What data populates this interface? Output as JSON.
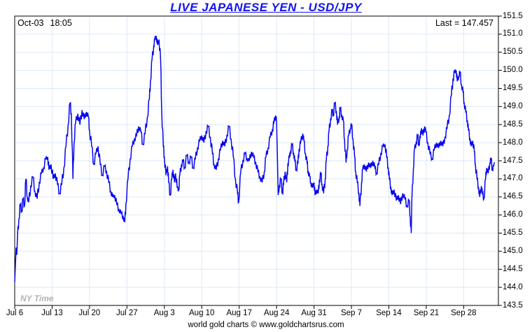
{
  "header": {
    "title": "LIVE JAPANESE YEN - USD/JPY",
    "date": "Oct-03",
    "time": "18:05",
    "last_label": "Last = 147.457"
  },
  "watermark": "NY Time",
  "footer": "world gold charts © www.goldchartsrus.com",
  "colors": {
    "line": "#0707ee",
    "title": "#1414f0",
    "grid": "#dce9f8",
    "axis": "#000000",
    "watermark": "#b3b3b3"
  },
  "chart_data": {
    "type": "line",
    "title": "LIVE JAPANESE YEN - USD/JPY",
    "series_name": "USD/JPY",
    "x_unit": "days since Jul 6",
    "xlim": [
      0,
      90.5
    ],
    "ylim": [
      143.5,
      151.5
    ],
    "y_tick_step": 0.5,
    "y_ticks": [
      151.5,
      151.0,
      150.5,
      150.0,
      149.5,
      149.0,
      148.5,
      148.0,
      147.5,
      147.0,
      146.5,
      146.0,
      145.5,
      145.0,
      144.5,
      144.0,
      143.5
    ],
    "x_ticks": [
      {
        "day": 0,
        "label": "Jul 6"
      },
      {
        "day": 7,
        "label": "Jul 13"
      },
      {
        "day": 14,
        "label": "Jul 20"
      },
      {
        "day": 21,
        "label": "Jul 27"
      },
      {
        "day": 28,
        "label": "Aug 3"
      },
      {
        "day": 35,
        "label": "Aug 10"
      },
      {
        "day": 42,
        "label": "Aug 17"
      },
      {
        "day": 49,
        "label": "Aug 24"
      },
      {
        "day": 56,
        "label": "Aug 31"
      },
      {
        "day": 63,
        "label": "Sep 7"
      },
      {
        "day": 70,
        "label": "Sep 14"
      },
      {
        "day": 77,
        "label": "Sep 21"
      },
      {
        "day": 84,
        "label": "Sep 28"
      }
    ],
    "grid": true,
    "legend": "none",
    "last_value": 147.457,
    "last_time": "Oct-03 18:05 NY Time",
    "points": [
      [
        0,
        144.15
      ],
      [
        0.13,
        144.6
      ],
      [
        0.26,
        145.1
      ],
      [
        0.39,
        144.9
      ],
      [
        0.52,
        145.4
      ],
      [
        0.79,
        145.9
      ],
      [
        1.05,
        146.3
      ],
      [
        1.31,
        146.1
      ],
      [
        1.57,
        146.45
      ],
      [
        1.83,
        146.25
      ],
      [
        2.1,
        147.0
      ],
      [
        2.36,
        146.5
      ],
      [
        2.62,
        146.35
      ],
      [
        3.0,
        146.8
      ],
      [
        3.4,
        147.05
      ],
      [
        3.8,
        146.65
      ],
      [
        4.2,
        146.45
      ],
      [
        4.6,
        146.9
      ],
      [
        5.0,
        147.15
      ],
      [
        5.4,
        147.3
      ],
      [
        5.8,
        147.55
      ],
      [
        6.2,
        147.6
      ],
      [
        6.4,
        147.25
      ],
      [
        6.8,
        147.4
      ],
      [
        7.2,
        147.0
      ],
      [
        7.6,
        147.15
      ],
      [
        8.0,
        146.85
      ],
      [
        8.4,
        146.6
      ],
      [
        8.8,
        146.85
      ],
      [
        9.2,
        147.3
      ],
      [
        9.6,
        147.9
      ],
      [
        10.0,
        148.5
      ],
      [
        10.35,
        149.1
      ],
      [
        10.6,
        148.8
      ],
      [
        10.9,
        147.0
      ],
      [
        11.1,
        148.0
      ],
      [
        11.4,
        148.55
      ],
      [
        11.8,
        148.8
      ],
      [
        12.2,
        148.5
      ],
      [
        12.6,
        148.9
      ],
      [
        13.0,
        148.65
      ],
      [
        13.4,
        148.85
      ],
      [
        13.8,
        148.7
      ],
      [
        14.0,
        148.35
      ],
      [
        14.4,
        147.9
      ],
      [
        14.8,
        147.4
      ],
      [
        15.2,
        147.7
      ],
      [
        15.6,
        147.9
      ],
      [
        16.0,
        147.4
      ],
      [
        16.4,
        147.1
      ],
      [
        16.8,
        147.35
      ],
      [
        17.2,
        147.2
      ],
      [
        17.6,
        146.9
      ],
      [
        18.0,
        146.65
      ],
      [
        18.3,
        146.5
      ],
      [
        18.7,
        146.55
      ],
      [
        19.1,
        146.3
      ],
      [
        19.5,
        146.15
      ],
      [
        19.9,
        146.05
      ],
      [
        20.3,
        145.95
      ],
      [
        20.6,
        145.8
      ],
      [
        20.8,
        146.3
      ],
      [
        21.2,
        147.0
      ],
      [
        21.6,
        147.55
      ],
      [
        22.0,
        147.9
      ],
      [
        22.4,
        148.1
      ],
      [
        22.8,
        148.2
      ],
      [
        23.2,
        148.45
      ],
      [
        23.6,
        148.3
      ],
      [
        24.0,
        147.95
      ],
      [
        24.4,
        148.25
      ],
      [
        24.8,
        148.7
      ],
      [
        25.2,
        149.2
      ],
      [
        25.4,
        149.7
      ],
      [
        25.7,
        150.3
      ],
      [
        26.0,
        150.65
      ],
      [
        26.2,
        150.85
      ],
      [
        26.5,
        150.95
      ],
      [
        26.7,
        150.7
      ],
      [
        27.0,
        150.85
      ],
      [
        27.3,
        150.3
      ],
      [
        27.5,
        148.9
      ],
      [
        27.8,
        147.9
      ],
      [
        28.0,
        147.6
      ],
      [
        28.3,
        147.1
      ],
      [
        28.6,
        147.35
      ],
      [
        28.8,
        146.9
      ],
      [
        29.1,
        146.55
      ],
      [
        29.4,
        147.0
      ],
      [
        29.6,
        147.25
      ],
      [
        29.9,
        146.9
      ],
      [
        30.1,
        147.15
      ],
      [
        30.4,
        146.75
      ],
      [
        30.7,
        146.7
      ],
      [
        30.9,
        147.1
      ],
      [
        31.2,
        147.4
      ],
      [
        31.5,
        147.5
      ],
      [
        31.8,
        147.3
      ],
      [
        32.2,
        147.65
      ],
      [
        32.6,
        147.45
      ],
      [
        33.0,
        147.6
      ],
      [
        33.4,
        147.3
      ],
      [
        33.8,
        147.55
      ],
      [
        34.2,
        147.85
      ],
      [
        34.6,
        148.05
      ],
      [
        35.0,
        148.2
      ],
      [
        35.4,
        148.0
      ],
      [
        35.8,
        148.3
      ],
      [
        36.2,
        148.45
      ],
      [
        36.6,
        148.15
      ],
      [
        37.0,
        147.7
      ],
      [
        37.3,
        147.4
      ],
      [
        37.7,
        147.25
      ],
      [
        38.1,
        147.55
      ],
      [
        38.5,
        147.8
      ],
      [
        38.9,
        148.05
      ],
      [
        39.3,
        147.9
      ],
      [
        39.7,
        148.2
      ],
      [
        40.1,
        148.45
      ],
      [
        40.5,
        148.1
      ],
      [
        40.9,
        147.6
      ],
      [
        41.3,
        147.0
      ],
      [
        41.7,
        146.6
      ],
      [
        41.9,
        146.35
      ],
      [
        42.3,
        147.2
      ],
      [
        42.7,
        147.5
      ],
      [
        43.1,
        147.7
      ],
      [
        43.5,
        147.55
      ],
      [
        43.9,
        147.5
      ],
      [
        44.3,
        147.75
      ],
      [
        44.7,
        147.6
      ],
      [
        45.1,
        147.45
      ],
      [
        45.5,
        147.2
      ],
      [
        45.9,
        147.05
      ],
      [
        46.3,
        146.9
      ],
      [
        46.7,
        147.2
      ],
      [
        47.0,
        147.6
      ],
      [
        47.4,
        147.85
      ],
      [
        47.8,
        148.15
      ],
      [
        48.2,
        148.35
      ],
      [
        48.5,
        148.55
      ],
      [
        48.8,
        148.75
      ],
      [
        49.0,
        148.6
      ],
      [
        49.15,
        147.6
      ],
      [
        49.3,
        146.55
      ],
      [
        49.5,
        146.8
      ],
      [
        49.8,
        147.0
      ],
      [
        50.1,
        146.6
      ],
      [
        50.3,
        146.85
      ],
      [
        50.6,
        147.2
      ],
      [
        50.9,
        146.9
      ],
      [
        51.1,
        147.4
      ],
      [
        51.4,
        147.6
      ],
      [
        51.6,
        147.75
      ],
      [
        51.9,
        147.95
      ],
      [
        52.2,
        147.7
      ],
      [
        52.4,
        147.5
      ],
      [
        52.7,
        147.25
      ],
      [
        53.0,
        147.45
      ],
      [
        53.2,
        147.8
      ],
      [
        53.5,
        148.0
      ],
      [
        53.9,
        148.25
      ],
      [
        54.1,
        148.05
      ],
      [
        54.4,
        147.7
      ],
      [
        54.7,
        147.45
      ],
      [
        54.9,
        147.2
      ],
      [
        55.2,
        147.05
      ],
      [
        55.4,
        146.9
      ],
      [
        55.7,
        146.75
      ],
      [
        56.0,
        146.9
      ],
      [
        56.2,
        146.55
      ],
      [
        56.5,
        146.7
      ],
      [
        56.8,
        146.6
      ],
      [
        57.0,
        146.95
      ],
      [
        57.3,
        147.15
      ],
      [
        57.5,
        146.85
      ],
      [
        57.8,
        146.6
      ],
      [
        58.1,
        147.0
      ],
      [
        58.3,
        147.5
      ],
      [
        58.6,
        147.9
      ],
      [
        58.8,
        148.3
      ],
      [
        59.1,
        148.65
      ],
      [
        59.4,
        148.9
      ],
      [
        59.6,
        148.75
      ],
      [
        59.9,
        149.1
      ],
      [
        60.2,
        148.85
      ],
      [
        60.4,
        148.5
      ],
      [
        60.7,
        148.7
      ],
      [
        60.9,
        148.95
      ],
      [
        61.2,
        148.75
      ],
      [
        61.5,
        148.6
      ],
      [
        61.7,
        148.1
      ],
      [
        62.0,
        147.45
      ],
      [
        62.2,
        147.8
      ],
      [
        62.5,
        148.2
      ],
      [
        62.8,
        148.4
      ],
      [
        63.0,
        148.5
      ],
      [
        63.3,
        148.1
      ],
      [
        63.6,
        147.6
      ],
      [
        63.8,
        147.2
      ],
      [
        64.1,
        146.9
      ],
      [
        64.4,
        146.6
      ],
      [
        64.6,
        146.25
      ],
      [
        64.9,
        146.9
      ],
      [
        65.1,
        147.25
      ],
      [
        65.4,
        147.4
      ],
      [
        65.8,
        147.2
      ],
      [
        66.2,
        147.45
      ],
      [
        66.6,
        147.3
      ],
      [
        67.0,
        147.5
      ],
      [
        67.4,
        147.3
      ],
      [
        67.7,
        147.15
      ],
      [
        68.1,
        147.4
      ],
      [
        68.5,
        147.7
      ],
      [
        68.9,
        147.9
      ],
      [
        69.3,
        147.95
      ],
      [
        69.6,
        147.6
      ],
      [
        69.9,
        147.3
      ],
      [
        70.1,
        147.0
      ],
      [
        70.4,
        146.75
      ],
      [
        70.6,
        146.55
      ],
      [
        71.0,
        146.7
      ],
      [
        71.4,
        146.4
      ],
      [
        71.8,
        146.55
      ],
      [
        72.2,
        146.3
      ],
      [
        72.6,
        146.6
      ],
      [
        73.0,
        146.45
      ],
      [
        73.4,
        146.25
      ],
      [
        73.8,
        146.4
      ],
      [
        74.0,
        145.95
      ],
      [
        74.2,
        145.5
      ],
      [
        74.3,
        146.4
      ],
      [
        74.6,
        147.3
      ],
      [
        74.8,
        147.8
      ],
      [
        75.1,
        148.0
      ],
      [
        75.4,
        148.2
      ],
      [
        75.6,
        147.95
      ],
      [
        75.9,
        148.15
      ],
      [
        76.1,
        148.4
      ],
      [
        76.4,
        148.2
      ],
      [
        76.7,
        148.45
      ],
      [
        76.9,
        148.3
      ],
      [
        77.3,
        148.0
      ],
      [
        77.7,
        147.7
      ],
      [
        78.1,
        147.55
      ],
      [
        78.5,
        147.8
      ],
      [
        78.9,
        148.0
      ],
      [
        79.3,
        147.85
      ],
      [
        79.7,
        148.05
      ],
      [
        80.1,
        147.9
      ],
      [
        80.5,
        148.15
      ],
      [
        80.9,
        148.4
      ],
      [
        81.3,
        148.75
      ],
      [
        81.7,
        149.3
      ],
      [
        82.0,
        149.75
      ],
      [
        82.3,
        149.95
      ],
      [
        82.6,
        150.0
      ],
      [
        82.8,
        149.7
      ],
      [
        83.1,
        149.85
      ],
      [
        83.3,
        149.95
      ],
      [
        83.6,
        149.6
      ],
      [
        83.9,
        149.4
      ],
      [
        84.1,
        149.1
      ],
      [
        84.4,
        148.85
      ],
      [
        84.7,
        148.6
      ],
      [
        84.9,
        148.35
      ],
      [
        85.2,
        148.1
      ],
      [
        85.4,
        147.9
      ],
      [
        85.7,
        148.05
      ],
      [
        86.0,
        147.75
      ],
      [
        86.2,
        147.4
      ],
      [
        86.5,
        147.0
      ],
      [
        86.8,
        146.75
      ],
      [
        87.0,
        146.5
      ],
      [
        87.3,
        146.8
      ],
      [
        87.5,
        146.6
      ],
      [
        87.8,
        146.45
      ],
      [
        88.1,
        147.0
      ],
      [
        88.3,
        147.3
      ],
      [
        88.6,
        147.15
      ],
      [
        88.9,
        147.45
      ],
      [
        89.1,
        147.55
      ],
      [
        89.4,
        147.25
      ],
      [
        89.6,
        147.35
      ],
      [
        89.75,
        147.457
      ]
    ]
  }
}
